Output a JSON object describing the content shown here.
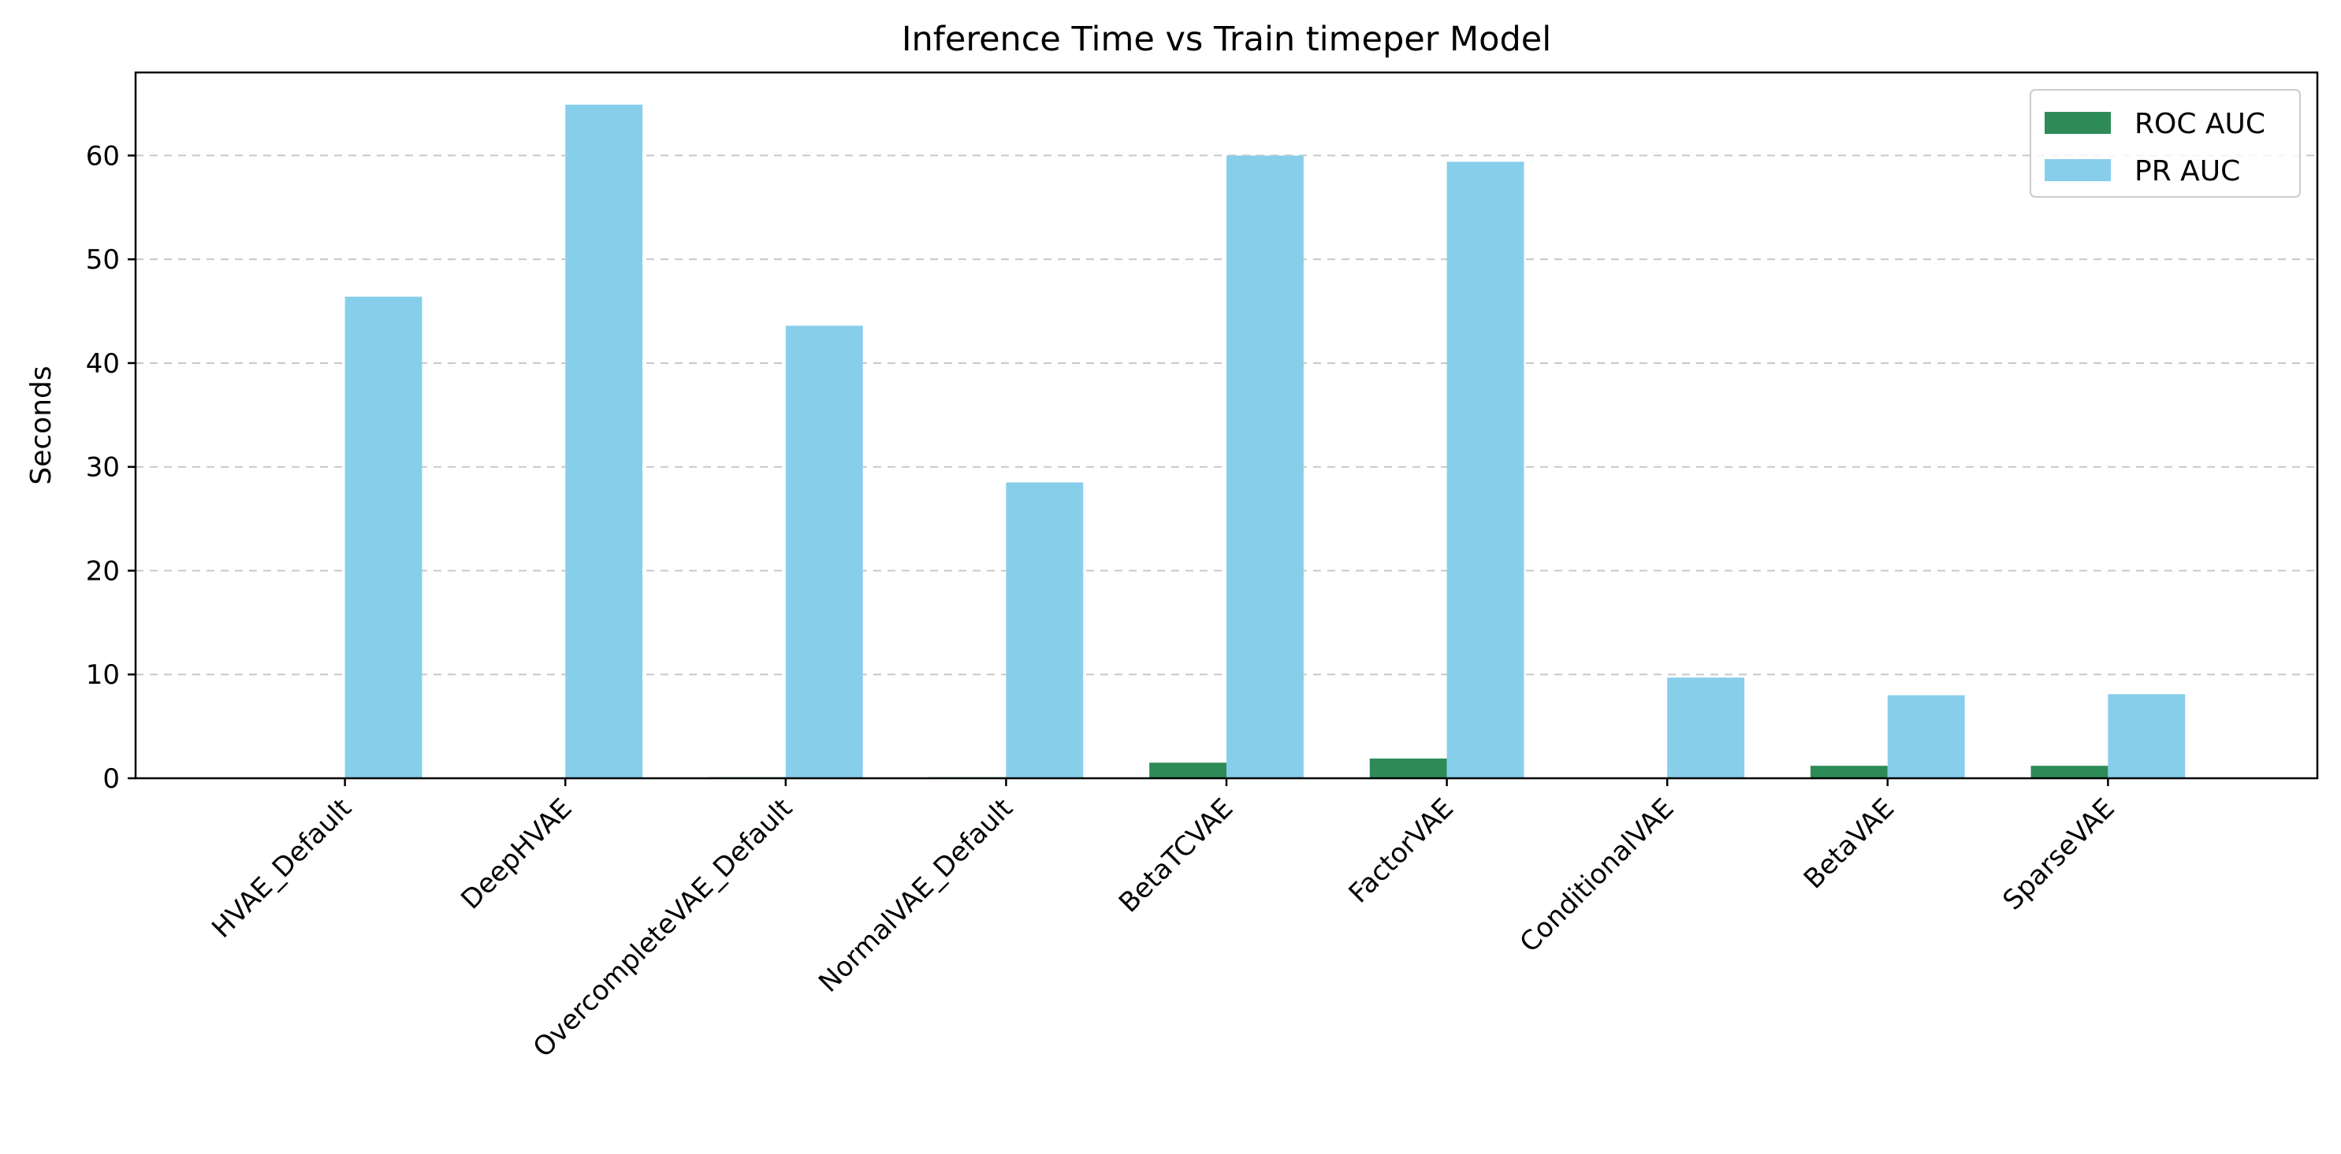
{
  "chart_data": {
    "type": "bar",
    "title": "Inference Time vs Train timeper Model",
    "xlabel": "",
    "ylabel": "Seconds",
    "ylim": [
      0,
      68
    ],
    "yticks": [
      0,
      10,
      20,
      30,
      40,
      50,
      60
    ],
    "grid": "y-dashed",
    "legend_position": "top-right",
    "categories": [
      "HVAE_Default",
      "DeepHVAE",
      "OvercompleteVAE_Default",
      "NormalVAE_Default",
      "BetaTCVAE",
      "FactorVAE",
      "ConditionalVAE",
      "BetaVAE",
      "SparseVAE"
    ],
    "series": [
      {
        "name": "ROC AUC",
        "color": "#2e8b57",
        "values": [
          0.0,
          0.0,
          0.1,
          0.1,
          1.5,
          1.9,
          0.0,
          1.2,
          1.2
        ]
      },
      {
        "name": "PR AUC",
        "color": "#87ceeb",
        "values": [
          46.4,
          64.9,
          43.6,
          28.5,
          60.0,
          59.4,
          9.7,
          8.0,
          8.1
        ]
      }
    ]
  }
}
